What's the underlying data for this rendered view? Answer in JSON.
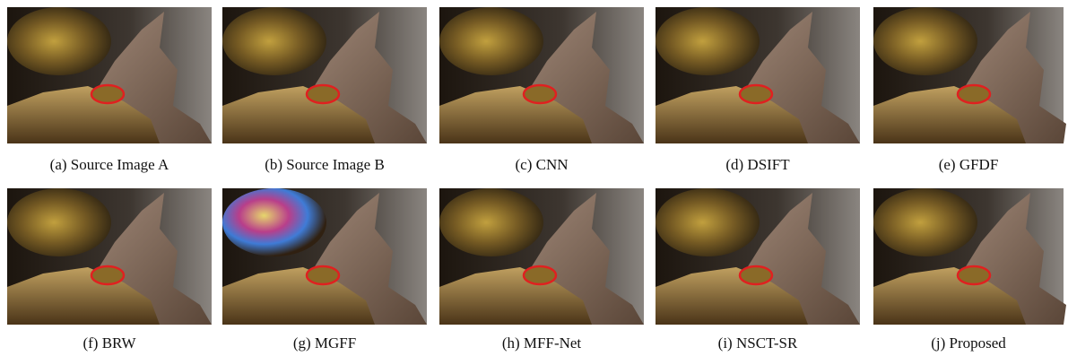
{
  "figure": {
    "panels": [
      {
        "caption": "(a)  Source Image A"
      },
      {
        "caption": "(b)  Source Image B"
      },
      {
        "caption": "(c)  CNN"
      },
      {
        "caption": "(d)  DSIFT"
      },
      {
        "caption": "(e)  GFDF"
      },
      {
        "caption": "(f)  BRW"
      },
      {
        "caption": "(g)  MGFF"
      },
      {
        "caption": "(h)  MFF-Net"
      },
      {
        "caption": "(i)  NSCT-SR"
      },
      {
        "caption": "(j)  Proposed"
      }
    ]
  }
}
